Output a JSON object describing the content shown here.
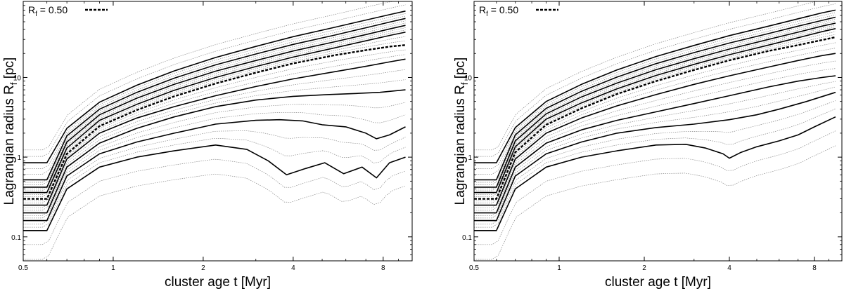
{
  "chart_data": [
    {
      "type": "line",
      "panel": "left",
      "xlabel": "cluster age t [Myr]",
      "ylabel_main": "Lagrangian radius R",
      "ylabel_sub": "f",
      "ylabel_unit": " [pc]",
      "xscale": "log",
      "yscale": "log",
      "xlim": [
        0.5,
        10
      ],
      "ylim": [
        0.05,
        90
      ],
      "xticks": [
        0.5,
        1,
        2,
        4,
        8
      ],
      "xtick_labels": [
        "0.5",
        "1",
        "2",
        "4",
        "8"
      ],
      "yticks": [
        0.1,
        1,
        10
      ],
      "ytick_labels": [
        "0.1",
        "1",
        "10"
      ],
      "legend": {
        "label_main": "R",
        "label_sub": "f",
        "label_value": " = 0.50",
        "style": "dashed",
        "placement": "top-left"
      },
      "solid_series": [
        {
          "name": "R_f=0.02",
          "x": [
            0.5,
            0.6,
            0.7,
            0.9,
            1.2,
            1.6,
            2.2,
            2.8,
            3.3,
            3.8,
            4.4,
            5.1,
            5.9,
            6.8,
            7.6,
            8.4,
            9.5
          ],
          "y": [
            0.12,
            0.12,
            0.4,
            0.75,
            1.0,
            1.2,
            1.42,
            1.25,
            0.9,
            0.6,
            0.72,
            0.85,
            0.62,
            0.75,
            0.55,
            0.85,
            1.0
          ]
        },
        {
          "name": "R_f=0.05",
          "x": [
            0.5,
            0.6,
            0.7,
            0.9,
            1.2,
            1.6,
            2.2,
            3.0,
            3.6,
            4.3,
            5.0,
            6.0,
            7.0,
            7.6,
            8.4,
            9.5
          ],
          "y": [
            0.16,
            0.16,
            0.58,
            1.1,
            1.55,
            2.0,
            2.6,
            2.9,
            2.95,
            2.85,
            2.55,
            2.4,
            2.0,
            1.7,
            1.9,
            2.4
          ]
        },
        {
          "name": "R_f=0.1",
          "x": [
            0.5,
            0.6,
            0.7,
            0.9,
            1.2,
            1.6,
            2.2,
            3.0,
            4.0,
            5.2,
            6.5,
            7.8,
            9.5
          ],
          "y": [
            0.2,
            0.2,
            0.75,
            1.5,
            2.3,
            3.2,
            4.3,
            5.2,
            5.8,
            6.1,
            6.3,
            6.5,
            7.0
          ]
        },
        {
          "name": "R_f=0.2",
          "x": [
            0.5,
            0.6,
            0.7,
            0.9,
            1.2,
            1.6,
            2.2,
            3.0,
            4.0,
            5.5,
            7.0,
            8.5,
            9.5
          ],
          "y": [
            0.25,
            0.25,
            0.95,
            2.0,
            3.1,
            4.3,
            5.9,
            7.7,
            9.6,
            11.8,
            13.8,
            15.8,
            17.0
          ]
        },
        {
          "name": "R_f=0.6",
          "x": [
            0.5,
            0.6,
            0.7,
            0.9,
            1.2,
            1.6,
            2.2,
            3.0,
            4.0,
            5.5,
            7.0,
            8.5,
            9.5
          ],
          "y": [
            0.36,
            0.36,
            1.3,
            2.9,
            4.6,
            6.9,
            10.0,
            13.7,
            18.0,
            23.5,
            28.8,
            34.0,
            37.0
          ]
        },
        {
          "name": "R_f=0.7",
          "x": [
            0.5,
            0.6,
            0.7,
            0.9,
            1.2,
            1.6,
            2.2,
            3.0,
            4.0,
            5.5,
            7.0,
            8.5,
            9.5
          ],
          "y": [
            0.42,
            0.42,
            1.55,
            3.4,
            5.5,
            8.2,
            12.0,
            16.3,
            21.5,
            28.0,
            34.5,
            41.0,
            45.0
          ]
        },
        {
          "name": "R_f=0.8",
          "x": [
            0.5,
            0.6,
            0.7,
            0.9,
            1.2,
            1.6,
            2.2,
            3.0,
            4.0,
            5.5,
            7.0,
            8.5,
            9.5
          ],
          "y": [
            0.52,
            0.52,
            1.85,
            4.0,
            6.5,
            9.8,
            14.4,
            19.7,
            26.0,
            34.0,
            42.0,
            50.0,
            55.0
          ]
        },
        {
          "name": "R_f=0.9",
          "x": [
            0.5,
            0.6,
            0.7,
            0.9,
            1.2,
            1.6,
            2.2,
            3.0,
            4.0,
            5.5,
            7.0,
            8.5,
            9.5
          ],
          "y": [
            0.85,
            0.85,
            2.3,
            4.9,
            8.0,
            12.1,
            17.8,
            24.5,
            32.5,
            42.5,
            52.5,
            62.0,
            68.0
          ]
        }
      ],
      "dashed_series": {
        "name": "R_f=0.50",
        "x": [
          0.5,
          0.6,
          0.7,
          0.9,
          1.2,
          1.6,
          2.2,
          3.0,
          4.0,
          5.5,
          7.0,
          8.5,
          9.5
        ],
        "y": [
          0.3,
          0.3,
          1.1,
          2.45,
          3.9,
          5.8,
          8.4,
          11.5,
          15.0,
          19.0,
          22.0,
          24.5,
          25.5
        ]
      }
    },
    {
      "type": "line",
      "panel": "right",
      "xlabel": "cluster age t [Myr]",
      "ylabel_main": "Lagrangian radius R",
      "ylabel_sub": "f",
      "ylabel_unit": " [pc]",
      "xscale": "log",
      "yscale": "log",
      "xlim": [
        0.5,
        10
      ],
      "ylim": [
        0.05,
        90
      ],
      "xticks": [
        0.5,
        1,
        2,
        4,
        8
      ],
      "xtick_labels": [
        "0.5",
        "1",
        "2",
        "4",
        "8"
      ],
      "yticks": [
        0.1,
        1,
        10
      ],
      "ytick_labels": [
        "0.1",
        "1",
        "10"
      ],
      "legend": {
        "label_main": "R",
        "label_sub": "f",
        "label_value": " = 0.50",
        "style": "dashed",
        "placement": "top-left"
      },
      "solid_series": [
        {
          "name": "R_f=0.02",
          "x": [
            0.5,
            0.6,
            0.7,
            0.9,
            1.2,
            1.6,
            2.2,
            2.8,
            3.3,
            3.8,
            4.0,
            4.4,
            5.0,
            6.0,
            7.0,
            8.0,
            9.5
          ],
          "y": [
            0.12,
            0.12,
            0.4,
            0.75,
            1.0,
            1.2,
            1.42,
            1.45,
            1.3,
            1.1,
            0.97,
            1.15,
            1.35,
            1.6,
            1.9,
            2.4,
            3.2
          ]
        },
        {
          "name": "R_f=0.05",
          "x": [
            0.5,
            0.6,
            0.7,
            0.9,
            1.2,
            1.6,
            2.2,
            3.0,
            4.0,
            5.0,
            6.0,
            7.5,
            9.5
          ],
          "y": [
            0.16,
            0.16,
            0.58,
            1.1,
            1.55,
            2.0,
            2.35,
            2.6,
            2.95,
            3.4,
            4.0,
            5.0,
            6.5
          ]
        },
        {
          "name": "R_f=0.1",
          "x": [
            0.5,
            0.6,
            0.7,
            0.9,
            1.2,
            1.6,
            2.2,
            3.0,
            4.0,
            5.5,
            7.0,
            8.5,
            9.5
          ],
          "y": [
            0.2,
            0.2,
            0.75,
            1.5,
            2.2,
            2.9,
            3.7,
            4.7,
            5.9,
            7.6,
            9.0,
            10.0,
            10.5
          ]
        },
        {
          "name": "R_f=0.2",
          "x": [
            0.5,
            0.6,
            0.7,
            0.9,
            1.2,
            1.6,
            2.2,
            3.0,
            4.0,
            5.5,
            7.0,
            8.5,
            9.5
          ],
          "y": [
            0.25,
            0.25,
            0.95,
            2.0,
            3.1,
            4.4,
            6.1,
            8.2,
            10.5,
            13.5,
            16.3,
            18.8,
            20.0
          ]
        },
        {
          "name": "R_f=0.6",
          "x": [
            0.5,
            0.6,
            0.7,
            0.9,
            1.2,
            1.6,
            2.2,
            3.0,
            4.0,
            5.5,
            7.0,
            8.5,
            9.5
          ],
          "y": [
            0.36,
            0.36,
            1.35,
            3.0,
            4.8,
            7.2,
            10.6,
            14.6,
            19.3,
            25.5,
            31.5,
            37.5,
            41.0
          ]
        },
        {
          "name": "R_f=0.7",
          "x": [
            0.5,
            0.6,
            0.7,
            0.9,
            1.2,
            1.6,
            2.2,
            3.0,
            4.0,
            5.5,
            7.0,
            8.5,
            9.5
          ],
          "y": [
            0.42,
            0.42,
            1.6,
            3.5,
            5.7,
            8.5,
            12.5,
            17.2,
            22.7,
            30.0,
            37.0,
            44.0,
            48.0
          ]
        },
        {
          "name": "R_f=0.8",
          "x": [
            0.5,
            0.6,
            0.7,
            0.9,
            1.2,
            1.6,
            2.2,
            3.0,
            4.0,
            5.5,
            7.0,
            8.5,
            9.5
          ],
          "y": [
            0.52,
            0.52,
            1.9,
            4.1,
            6.7,
            10.1,
            14.9,
            20.5,
            27.0,
            35.5,
            44.0,
            52.0,
            57.0
          ]
        },
        {
          "name": "R_f=0.9",
          "x": [
            0.5,
            0.6,
            0.7,
            0.9,
            1.2,
            1.6,
            2.2,
            3.0,
            4.0,
            5.5,
            7.0,
            8.5,
            9.5
          ],
          "y": [
            0.85,
            0.85,
            2.35,
            5.0,
            8.2,
            12.4,
            18.3,
            25.2,
            33.5,
            44.0,
            54.5,
            64.5,
            70.0
          ]
        }
      ],
      "dashed_series": {
        "name": "R_f=0.50",
        "x": [
          0.5,
          0.6,
          0.7,
          0.9,
          1.2,
          1.6,
          2.2,
          3.0,
          4.0,
          5.5,
          7.0,
          8.5,
          9.5
        ],
        "y": [
          0.3,
          0.3,
          1.15,
          2.55,
          4.1,
          6.2,
          9.0,
          12.4,
          16.4,
          21.5,
          25.5,
          29.5,
          32.0
        ]
      }
    }
  ]
}
